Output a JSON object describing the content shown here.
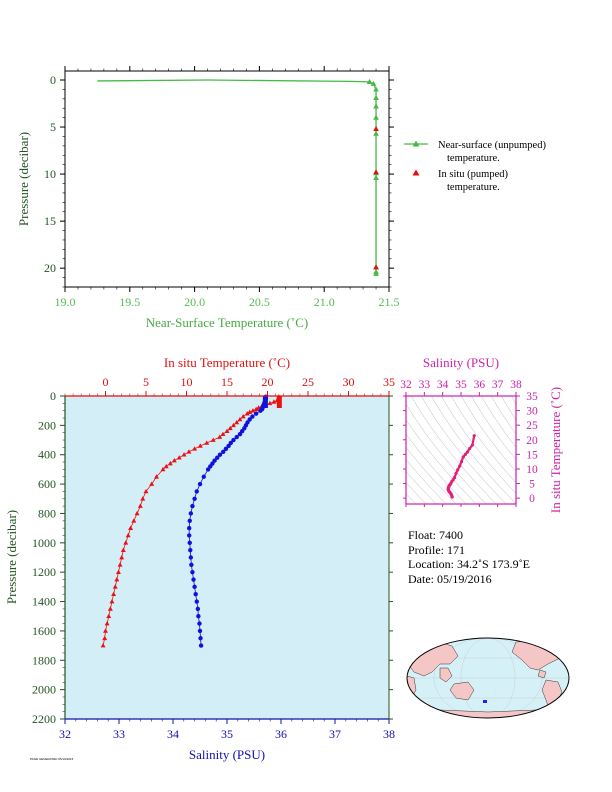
{
  "chart_data": [
    {
      "type": "line",
      "name": "near-surface-panel",
      "xlabel": "Near-Surface Temperature (˚C)",
      "ylabel": "Pressure (decibar)",
      "xlim": [
        19.0,
        21.5
      ],
      "ylim": [
        0,
        22
      ],
      "y_inverted": true,
      "xticks": [
        "19.0",
        "19.5",
        "20.0",
        "20.5",
        "21.0",
        "21.5"
      ],
      "yticks": [
        "0",
        "5",
        "10",
        "15",
        "20"
      ],
      "series": [
        {
          "name": "Near-surface (unpumped) temperature.",
          "color": "#44bb44",
          "marker": "triangle",
          "x": [
            19.25,
            20.1,
            21.2,
            21.35,
            21.38,
            21.4,
            21.4,
            21.4,
            21.4,
            21.4,
            21.4,
            21.4,
            21.4,
            21.4,
            21.4
          ],
          "y": [
            0.1,
            0.0,
            0.15,
            0.2,
            0.4,
            1.0,
            1.9,
            2.8,
            4.0,
            5.7,
            9.9,
            10.4,
            19.9,
            20.4,
            20.6
          ]
        },
        {
          "name": "In situ (pumped) temperature.",
          "color": "#dd1111",
          "marker": "triangle",
          "x": [
            21.4,
            21.4,
            21.4
          ],
          "y": [
            5.2,
            9.8,
            19.9
          ]
        }
      ]
    },
    {
      "type": "line",
      "name": "profile-panel",
      "xlabel": "Salinity (PSU)",
      "x2label": "In situ Temperature (˚C)",
      "ylabel": "Pressure (decibar)",
      "salinity_lim": [
        32,
        38
      ],
      "temperature_lim": [
        -5,
        35
      ],
      "ylim": [
        0,
        2200
      ],
      "y_inverted": true,
      "salinity_ticks": [
        "32",
        "33",
        "34",
        "35",
        "36",
        "37",
        "38"
      ],
      "temperature_ticks": [
        "0",
        "5",
        "10",
        "15",
        "20",
        "25",
        "30",
        "35"
      ],
      "pressure_ticks": [
        "0",
        "200",
        "400",
        "600",
        "800",
        "1000",
        "1200",
        "1400",
        "1600",
        "1800",
        "2000",
        "2200"
      ],
      "temperature": {
        "color": "#ee1111",
        "pressure": [
          5,
          10,
          20,
          30,
          40,
          50,
          60,
          70,
          80,
          90,
          100,
          110,
          120,
          140,
          160,
          180,
          200,
          220,
          240,
          260,
          280,
          300,
          320,
          340,
          360,
          380,
          400,
          420,
          440,
          460,
          480,
          500,
          550,
          600,
          650,
          700,
          750,
          800,
          850,
          900,
          950,
          1000,
          1050,
          1100,
          1150,
          1200,
          1250,
          1300,
          1350,
          1400,
          1450,
          1500,
          1550,
          1600,
          1650,
          1700
        ],
        "values": [
          21.4,
          21.4,
          21.3,
          21.2,
          20.8,
          20.3,
          19.8,
          19.3,
          18.9,
          18.6,
          18.2,
          17.8,
          17.5,
          17.0,
          16.6,
          16.2,
          15.8,
          15.4,
          15.0,
          14.5,
          14.1,
          13.3,
          12.5,
          11.7,
          11.0,
          10.3,
          9.7,
          9.1,
          8.5,
          8.0,
          7.5,
          7.1,
          6.3,
          5.7,
          5.0,
          4.6,
          4.3,
          3.9,
          3.5,
          3.1,
          2.8,
          2.5,
          2.2,
          2.0,
          1.8,
          1.6,
          1.4,
          1.2,
          1.0,
          0.8,
          0.6,
          0.4,
          0.2,
          0.0,
          -0.1,
          -0.3
        ]
      },
      "salinity": {
        "color": "#1111dd",
        "pressure": [
          5,
          10,
          20,
          30,
          40,
          50,
          60,
          70,
          80,
          90,
          100,
          120,
          140,
          160,
          180,
          200,
          220,
          240,
          260,
          280,
          300,
          320,
          340,
          360,
          380,
          400,
          420,
          440,
          460,
          480,
          500,
          550,
          600,
          650,
          700,
          750,
          800,
          850,
          900,
          950,
          1000,
          1050,
          1100,
          1150,
          1200,
          1250,
          1300,
          1350,
          1400,
          1450,
          1500,
          1550,
          1600,
          1650,
          1700
        ],
        "values": [
          35.72,
          35.72,
          35.72,
          35.71,
          35.7,
          35.69,
          35.68,
          35.67,
          35.66,
          35.65,
          35.62,
          35.54,
          35.47,
          35.42,
          35.38,
          35.35,
          35.32,
          35.28,
          35.24,
          35.18,
          35.12,
          35.07,
          35.03,
          34.98,
          34.93,
          34.87,
          34.82,
          34.77,
          34.73,
          34.69,
          34.65,
          34.57,
          34.5,
          34.44,
          34.4,
          34.36,
          34.33,
          34.31,
          34.3,
          34.3,
          34.31,
          34.32,
          34.33,
          34.34,
          34.36,
          34.38,
          34.4,
          34.42,
          34.44,
          34.46,
          34.47,
          34.49,
          34.5,
          34.51,
          34.52
        ]
      }
    },
    {
      "type": "scatter",
      "name": "ts-diagram",
      "xlabel": "Salinity (PSU)",
      "ylabel": "In situ Temperature (˚C)",
      "xlim": [
        32,
        38
      ],
      "ylim": [
        -2,
        35
      ],
      "xticks": [
        "32",
        "33",
        "34",
        "35",
        "36",
        "37",
        "38"
      ],
      "yticks": [
        "0",
        "5",
        "10",
        "15",
        "20",
        "25",
        "30",
        "35"
      ],
      "color": "#e0207a",
      "x": [
        35.72,
        35.62,
        35.47,
        35.35,
        35.24,
        35.12,
        35.03,
        34.93,
        34.82,
        34.73,
        34.65,
        34.57,
        34.5,
        34.44,
        34.4,
        34.36,
        34.33,
        34.31,
        34.3,
        34.31,
        34.33,
        34.36,
        34.4,
        34.44,
        34.47,
        34.5,
        34.52
      ],
      "y": [
        21.4,
        18.2,
        17.0,
        15.8,
        15.0,
        14.1,
        12.5,
        11.0,
        9.7,
        8.5,
        7.1,
        6.3,
        5.7,
        5.0,
        4.6,
        4.3,
        3.9,
        3.5,
        3.1,
        2.8,
        2.5,
        2.2,
        2.0,
        1.6,
        1.2,
        0.8,
        0.4
      ]
    }
  ],
  "legend": {
    "near_surface_line1": "Near-surface (unpumped)",
    "near_surface_line2": "temperature.",
    "in_situ_line1": "In situ (pumped)",
    "in_situ_line2": "temperature."
  },
  "info": {
    "float": "Float:  7400",
    "profile": "Profile:  171",
    "location": "Location:  34.2˚S  173.9˚E",
    "date": "Date:  05/19/2016"
  },
  "map": {
    "marker_color": "#2222ee",
    "land_color": "#f4c6c6",
    "ocean_color": "#d6f0f8"
  },
  "footer": {
    "note": "PAGE GENERATED 05/19/2016"
  },
  "colors": {
    "near_surface_axis": "#55bb55",
    "temperature_axis": "#dd1111",
    "salinity_axis": "#1111aa",
    "pressure_axis": "#225522",
    "ts_axis": "#cc22aa",
    "profile_bg": "#d4eef8"
  }
}
